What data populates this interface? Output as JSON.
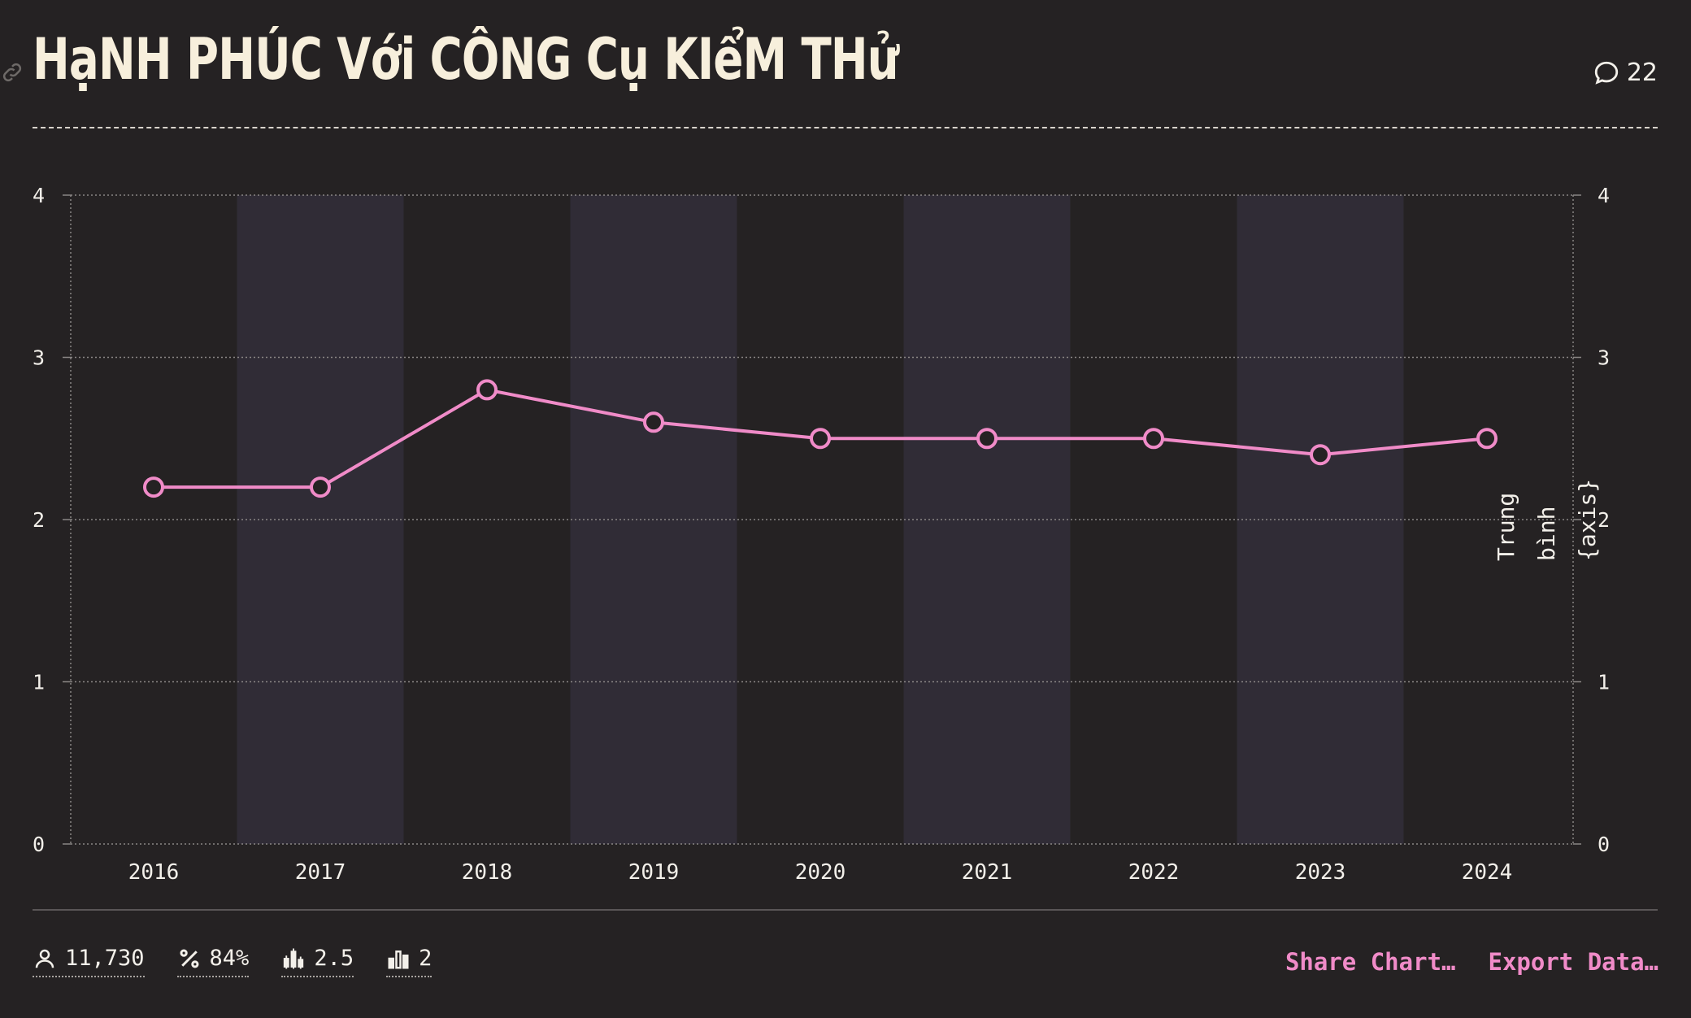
{
  "header": {
    "title": "HạNH PHÚC Với CÔNG Cụ KIểM THử",
    "comment_count": "22"
  },
  "footer": {
    "stats": [
      {
        "icon": "person-icon",
        "value": "11,730"
      },
      {
        "icon": "percent-icon",
        "value": "84%"
      },
      {
        "icon": "candlestick-icon",
        "value": "2.5"
      },
      {
        "icon": "bar-chart-icon",
        "value": "2"
      }
    ],
    "share_label": "Share Chart…",
    "export_label": "Export Data…"
  },
  "chart_data": {
    "type": "line",
    "categories": [
      "2016",
      "2017",
      "2018",
      "2019",
      "2020",
      "2021",
      "2022",
      "2023",
      "2024"
    ],
    "series": [
      {
        "values": [
          2.2,
          2.2,
          2.8,
          2.6,
          2.5,
          2.5,
          2.5,
          2.4,
          2.5
        ],
        "color": "#f08bc8"
      }
    ],
    "ylim": [
      0,
      4
    ],
    "yticks": [
      0,
      1,
      2,
      3,
      4
    ],
    "ylabel_right": "Trung bình {axis}",
    "grid": true,
    "alternating_column_bands": true,
    "colors": {
      "band": "#302c36",
      "grid": "#8a8685",
      "axis_text": "#f3f0ea"
    }
  }
}
